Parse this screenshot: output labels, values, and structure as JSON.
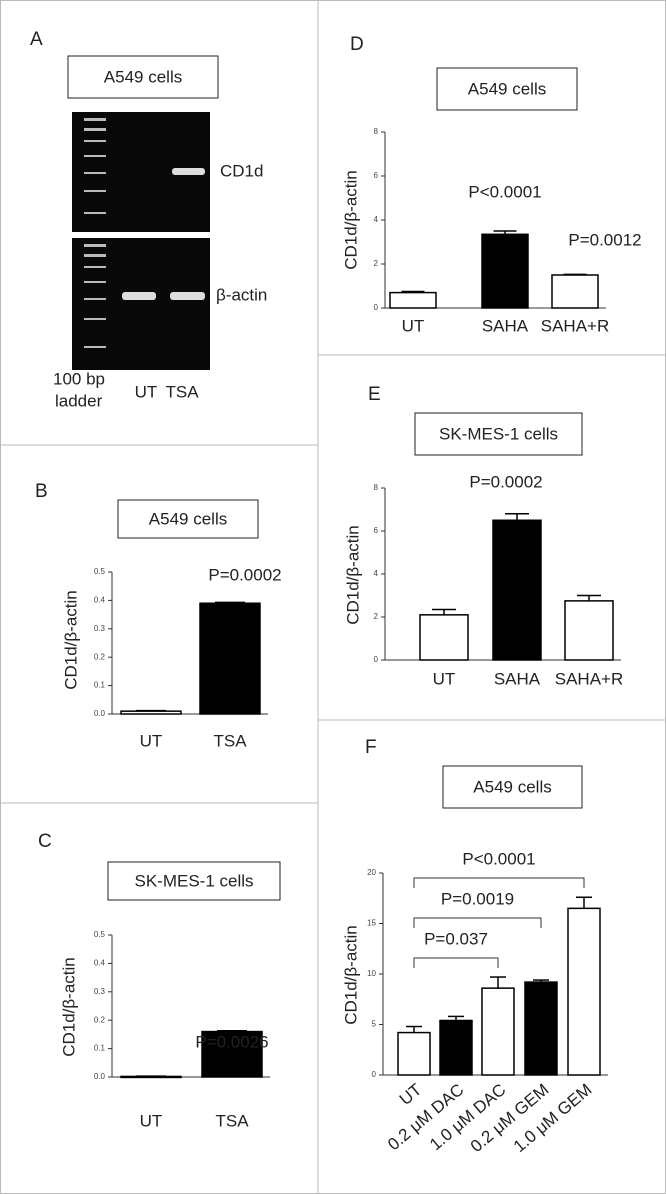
{
  "gel": {
    "panel": "A",
    "title": "A549 cells",
    "bands": [
      "CD1d",
      "β-actin"
    ],
    "ladder_label": [
      "100 bp",
      "ladder"
    ],
    "lanes": [
      "UT",
      "TSA"
    ]
  },
  "chart_data": [
    {
      "type": "bar",
      "panel": "B",
      "title": "A549 cells",
      "ylabel": "CD1d/β-actin",
      "categories": [
        "UT",
        "TSA"
      ],
      "values": [
        0.01,
        0.39
      ],
      "errors": [
        0.002,
        0.003
      ],
      "colors": [
        "#ffffff",
        "#000000"
      ],
      "ylim": [
        0,
        0.5
      ],
      "yticks": [
        {
          "value": 0,
          "label": "0.0"
        },
        {
          "value": 0.1,
          "label": "0.1"
        },
        {
          "value": 0.2,
          "label": "0.2"
        },
        {
          "value": 0.3,
          "label": "0.3"
        },
        {
          "value": 0.4,
          "label": "0.4"
        },
        {
          "value": 0.5,
          "label": "0.5"
        }
      ],
      "annotations": [
        "P=0.0002"
      ]
    },
    {
      "type": "bar",
      "panel": "C",
      "title": "SK-MES-1 cells",
      "ylabel": "CD1d/β-actin",
      "categories": [
        "UT",
        "TSA"
      ],
      "values": [
        0.002,
        0.16
      ],
      "errors": [
        0.001,
        0.003
      ],
      "colors": [
        "#ffffff",
        "#000000"
      ],
      "ylim": [
        0,
        0.5
      ],
      "yticks": [
        {
          "value": 0,
          "label": "0.0"
        },
        {
          "value": 0.1,
          "label": "0.1"
        },
        {
          "value": 0.2,
          "label": "0.2"
        },
        {
          "value": 0.3,
          "label": "0.3"
        },
        {
          "value": 0.4,
          "label": "0.4"
        },
        {
          "value": 0.5,
          "label": "0.5"
        }
      ],
      "annotations": [
        "P=0.0026"
      ]
    },
    {
      "type": "bar",
      "panel": "D",
      "title": "A549 cells",
      "ylabel": "CD1d/β-actin",
      "categories": [
        "UT",
        "SAHA",
        "SAHA+R"
      ],
      "values": [
        0.7,
        3.35,
        1.5
      ],
      "errors": [
        0.05,
        0.15,
        0.03
      ],
      "colors": [
        "#ffffff",
        "#000000",
        "#ffffff"
      ],
      "ylim": [
        0,
        8
      ],
      "yticks": [
        0,
        2,
        4,
        6,
        8
      ],
      "annotations": [
        "P<0.0001",
        "P=0.0012"
      ]
    },
    {
      "type": "bar",
      "panel": "E",
      "title": "SK-MES-1 cells",
      "ylabel": "CD1d/β-actin",
      "categories": [
        "UT",
        "SAHA",
        "SAHA+R"
      ],
      "values": [
        2.1,
        6.5,
        2.75
      ],
      "errors": [
        0.25,
        0.3,
        0.25
      ],
      "colors": [
        "#ffffff",
        "#000000",
        "#ffffff"
      ],
      "ylim": [
        0,
        8
      ],
      "yticks": [
        0,
        2,
        4,
        6,
        8
      ],
      "annotations": [
        "P=0.0002"
      ]
    },
    {
      "type": "bar",
      "panel": "F",
      "title": "A549 cells",
      "ylabel": "CD1d/β-actin",
      "categories": [
        "UT",
        "0.2 μM DAC",
        "1.0 μM DAC",
        "0.2 μM GEM",
        "1.0 μM GEM"
      ],
      "values": [
        4.2,
        5.4,
        8.6,
        9.2,
        16.5
      ],
      "errors": [
        0.6,
        0.4,
        1.1,
        0.2,
        1.1
      ],
      "colors": [
        "#ffffff",
        "#000000",
        "#ffffff",
        "#000000",
        "#ffffff"
      ],
      "ylim": [
        0,
        20
      ],
      "yticks": [
        0,
        5,
        10,
        15,
        20
      ],
      "annotations": [
        "P<0.0001",
        "P=0.0019",
        "P=0.037"
      ]
    }
  ]
}
